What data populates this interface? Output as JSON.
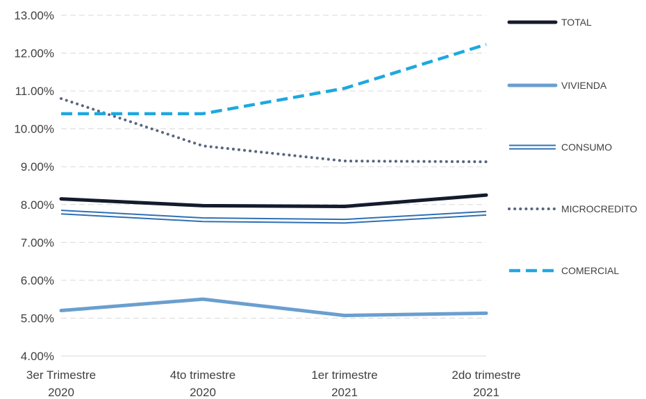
{
  "chart_data": {
    "type": "line",
    "categories": [
      [
        "3er Trimestre",
        "2020"
      ],
      [
        "4to trimestre",
        "2020"
      ],
      [
        "1er trimestre",
        "2021"
      ],
      [
        "2do trimestre",
        "2021"
      ]
    ],
    "ylim": [
      4.0,
      13.0
    ],
    "yticks": [
      {
        "value": 4.0,
        "label": "4.00%"
      },
      {
        "value": 5.0,
        "label": "5.00%"
      },
      {
        "value": 6.0,
        "label": "6.00%"
      },
      {
        "value": 7.0,
        "label": "7.00%"
      },
      {
        "value": 8.0,
        "label": "8.00%"
      },
      {
        "value": 9.0,
        "label": "9.00%"
      },
      {
        "value": 10.0,
        "label": "10.00%"
      },
      {
        "value": 11.0,
        "label": "11.00%"
      },
      {
        "value": 12.0,
        "label": "12.00%"
      },
      {
        "value": 13.0,
        "label": "13.00%"
      }
    ],
    "grid": true,
    "legend_position": "right",
    "series": [
      {
        "name": "TOTAL",
        "values": [
          8.15,
          7.97,
          7.95,
          8.25
        ],
        "color": "#141b2d",
        "style": "solid-thick"
      },
      {
        "name": "VIVIENDA",
        "values": [
          5.2,
          5.5,
          5.07,
          5.13
        ],
        "color": "#6a9fcf",
        "style": "solid-medium"
      },
      {
        "name": "CONSUMO",
        "values": [
          7.8,
          7.6,
          7.56,
          7.77
        ],
        "color": "#2e6fb4",
        "style": "double"
      },
      {
        "name": "MICROCREDITO",
        "values": [
          10.8,
          9.55,
          9.15,
          9.13
        ],
        "color": "#56657d",
        "style": "dotted"
      },
      {
        "name": "COMERCIAL",
        "values": [
          10.4,
          10.4,
          11.07,
          12.23
        ],
        "color": "#1ea8e0",
        "style": "dashed"
      }
    ]
  }
}
